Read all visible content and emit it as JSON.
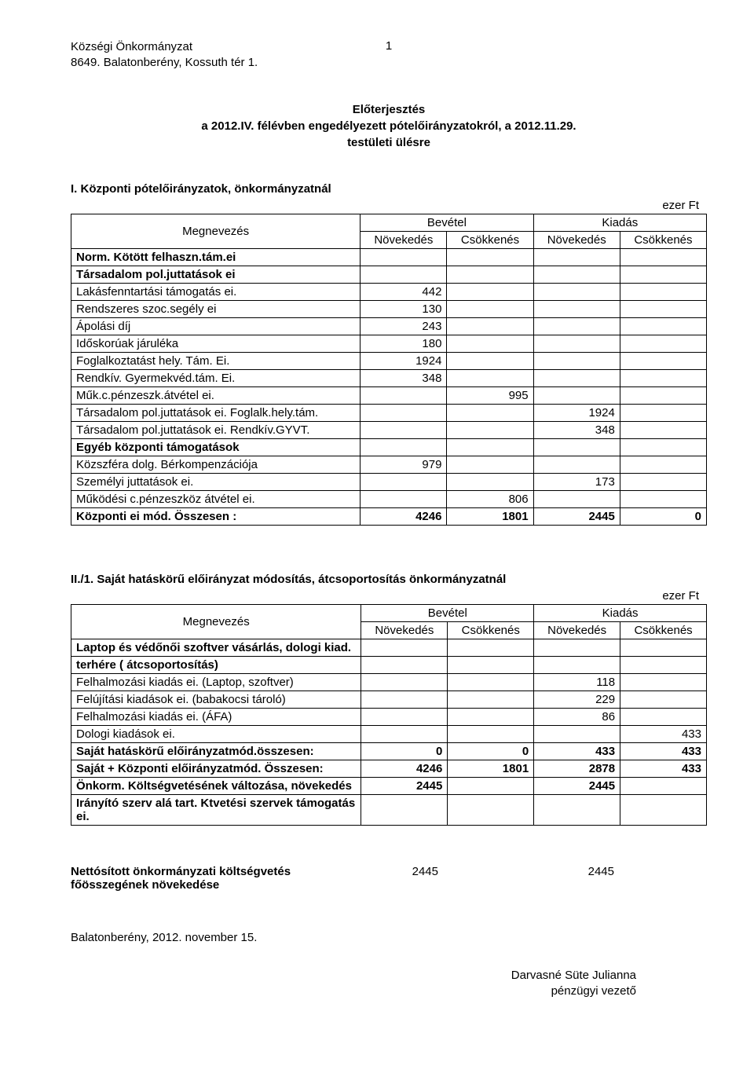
{
  "header": {
    "org": "Községi Önkormányzat",
    "addr": "8649. Balatonberény, Kossuth tér 1.",
    "page_num": "1"
  },
  "title": {
    "l1": "Előterjesztés",
    "l2": "a 2012.IV. félévben engedélyezett pótelőirányzatokról, a 2012.11.29.",
    "l3": "testületi ülésre"
  },
  "sec1": {
    "title": "I. Központi pótelőirányzatok, önkormányzatnál",
    "unit": "ezer Ft",
    "head": {
      "meg": "Megnevezés",
      "bev": "Bevétel",
      "kiad": "Kiadás",
      "nov": "Növekedés",
      "csok": "Csökkenés"
    },
    "rows": [
      {
        "label": "Norm. Kötött felhaszn.tám.ei",
        "bold": true,
        "v": [
          "",
          "",
          "",
          ""
        ]
      },
      {
        "label": "Társadalom pol.juttatások ei",
        "bold": true,
        "v": [
          "",
          "",
          "",
          ""
        ]
      },
      {
        "label": "Lakásfenntartási támogatás ei.",
        "v": [
          "442",
          "",
          "",
          ""
        ]
      },
      {
        "label": "Rendszeres szoc.segély ei",
        "v": [
          "130",
          "",
          "",
          ""
        ]
      },
      {
        "label": "Ápolási díj",
        "v": [
          "243",
          "",
          "",
          ""
        ]
      },
      {
        "label": "Időskorúak járuléka",
        "v": [
          "180",
          "",
          "",
          ""
        ]
      },
      {
        "label": "Foglalkoztatást hely. Tám. Ei.",
        "v": [
          "1924",
          "",
          "",
          ""
        ]
      },
      {
        "label": "Rendkív. Gyermekvéd.tám. Ei.",
        "v": [
          "348",
          "",
          "",
          ""
        ]
      },
      {
        "label": "Műk.c.pénzeszk.átvétel ei.",
        "v": [
          "",
          "995",
          "",
          ""
        ]
      },
      {
        "label": "Társadalom pol.juttatások ei. Foglalk.hely.tám.",
        "v": [
          "",
          "",
          "1924",
          ""
        ]
      },
      {
        "label": "Társadalom pol.juttatások ei. Rendkív.GYVT.",
        "v": [
          "",
          "",
          "348",
          ""
        ]
      },
      {
        "label": "Egyéb központi támogatások",
        "bold": true,
        "v": [
          "",
          "",
          "",
          ""
        ]
      },
      {
        "label": "Közszféra dolg. Bérkompenzációja",
        "v": [
          "979",
          "",
          "",
          ""
        ]
      },
      {
        "label": "Személyi juttatások ei.",
        "v": [
          "",
          "",
          "173",
          ""
        ]
      },
      {
        "label": "Működési c.pénzeszköz átvétel ei.",
        "v": [
          "",
          "806",
          "",
          ""
        ]
      },
      {
        "label": "Központi ei mód. Összesen :",
        "bold": true,
        "v": [
          "4246",
          "1801",
          "2445",
          "0"
        ]
      }
    ]
  },
  "sec2": {
    "title": "II./1. Saját hatáskörű előirányzat módosítás, átcsoportosítás önkormányzatnál",
    "unit": "ezer Ft",
    "rows": [
      {
        "label": "Laptop és védőnői szoftver vásárlás, dologi kiad.",
        "bold": true,
        "v": [
          "",
          "",
          "",
          ""
        ]
      },
      {
        "label": "terhére ( átcsoportosítás)",
        "bold": true,
        "v": [
          "",
          "",
          "",
          ""
        ]
      },
      {
        "label": "Felhalmozási kiadás ei. (Laptop, szoftver)",
        "v": [
          "",
          "",
          "118",
          ""
        ]
      },
      {
        "label": "Felújítási kiadások ei. (babakocsi tároló)",
        "v": [
          "",
          "",
          "229",
          ""
        ]
      },
      {
        "label": "Felhalmozási kiadás ei. (ÁFA)",
        "v": [
          "",
          "",
          "86",
          ""
        ]
      },
      {
        "label": "Dologi kiadások ei.",
        "v": [
          "",
          "",
          "",
          "433"
        ]
      },
      {
        "label": "Saját hatáskörű előirányzatmód.összesen:",
        "bold": true,
        "v": [
          "0",
          "0",
          "433",
          "433"
        ]
      },
      {
        "label": "Saját + Központi előirányzatmód. Összesen:",
        "bold": true,
        "v": [
          "4246",
          "1801",
          "2878",
          "433"
        ]
      },
      {
        "label": "Önkorm. Költségvetésének  változása, növekedés",
        "bold": true,
        "v": [
          "2445",
          "",
          "2445",
          ""
        ]
      },
      {
        "label": "Irányító szerv alá tart. Ktvetési szervek támogatás ei.",
        "bold": true,
        "v": [
          "",
          "",
          "",
          ""
        ]
      }
    ]
  },
  "netto": {
    "l1": "Nettósított önkormányzati költségvetés",
    "l2": "főösszegének növekedése",
    "v1": "2445",
    "v3": "2445"
  },
  "date": "Balatonberény, 2012. november 15.",
  "sign": {
    "name": "Darvasné Süte Julianna",
    "role": "pénzügyi vezető"
  }
}
